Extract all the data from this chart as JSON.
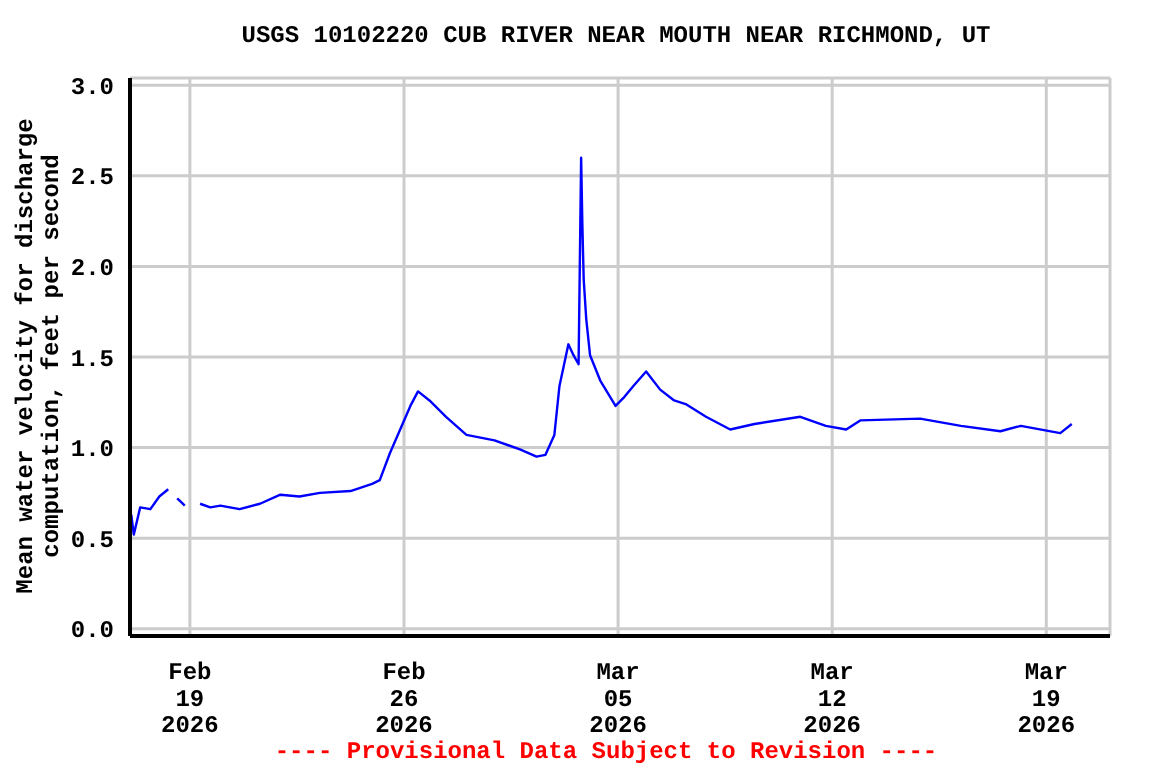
{
  "chart_data": {
    "type": "line",
    "title": "USGS 10102220 CUB RIVER NEAR MOUTH NEAR RICHMOND, UT",
    "ylabel": "Mean water velocity for discharge\ncomputation, feet per second",
    "annotations": [
      "---- Provisional Data Subject to Revision ----"
    ],
    "x": [
      "2026-02-17T02:00",
      "2026-02-17T04:00",
      "2026-02-17T09:00",
      "2026-02-17T17:00",
      "2026-02-18T00:00",
      "2026-02-18T07:00",
      "2026-02-18T12:00",
      "2026-02-19T08:00",
      "2026-02-19T16:00",
      "2026-02-20T00:00",
      "2026-02-20T15:00",
      "2026-02-21T07:00",
      "2026-02-21T23:00",
      "2026-02-22T14:00",
      "2026-02-23T06:00",
      "2026-02-24T06:00",
      "2026-02-24T23:00",
      "2026-02-25T05:00",
      "2026-02-25T13:00",
      "2026-02-26T05:00",
      "2026-02-26T11:00",
      "2026-02-26T20:00",
      "2026-02-27T09:00",
      "2026-02-28T01:00",
      "2026-02-28T23:00",
      "2026-03-01T19:00",
      "2026-03-02T08:00",
      "2026-03-02T15:00",
      "2026-03-02T22:00",
      "2026-03-03T02:00",
      "2026-03-03T09:00",
      "2026-03-03T13:00",
      "2026-03-03T17:00",
      "2026-03-03T19:00",
      "2026-03-03T20:00",
      "2026-03-03T21:00",
      "2026-03-03T23:00",
      "2026-03-04T02:00",
      "2026-03-04T10:00",
      "2026-03-04T22:00",
      "2026-03-05T05:00",
      "2026-03-05T12:00",
      "2026-03-05T22:00",
      "2026-03-06T09:00",
      "2026-03-06T20:00",
      "2026-03-07T05:00",
      "2026-03-07T21:00",
      "2026-03-08T16:00",
      "2026-03-09T11:00",
      "2026-03-10T23:00",
      "2026-03-11T19:00",
      "2026-03-12T11:00",
      "2026-03-12T22:00",
      "2026-03-14T21:00",
      "2026-03-16T05:00",
      "2026-03-17T12:00",
      "2026-03-18T04:00",
      "2026-03-19T11:00",
      "2026-03-19T20:00"
    ],
    "series": [
      {
        "color": "#0000ff",
        "values": [
          0.63,
          0.52,
          0.67,
          0.66,
          0.73,
          0.77,
          null,
          0.69,
          0.67,
          0.68,
          0.66,
          0.69,
          0.74,
          0.73,
          0.75,
          0.76,
          0.8,
          0.82,
          0.97,
          1.23,
          1.31,
          1.26,
          1.17,
          1.07,
          1.04,
          0.99,
          0.95,
          0.96,
          1.07,
          1.34,
          1.57,
          1.51,
          1.46,
          2.6,
          2.22,
          1.93,
          1.71,
          1.51,
          1.37,
          1.23,
          1.28,
          1.34,
          1.42,
          1.32,
          1.26,
          1.24,
          1.17,
          1.1,
          1.13,
          1.17,
          1.12,
          1.1,
          1.15,
          1.16,
          1.12,
          1.09,
          1.12,
          1.08,
          1.13
        ]
      },
      {
        "color": "#0000ff",
        "x": [
          "2026-02-18T14:00",
          "2026-02-18T17:00",
          "2026-02-18T20:00"
        ],
        "values": [
          0.72,
          0.7,
          0.68
        ]
      }
    ],
    "xlim": [
      "2026-02-17T01:00",
      "2026-03-21T02:00"
    ],
    "xticks": [
      {
        "value": "2026-02-19",
        "label": "Feb\n19\n2026"
      },
      {
        "value": "2026-02-26",
        "label": "Feb\n26\n2026"
      },
      {
        "value": "2026-03-05",
        "label": "Mar\n05\n2026"
      },
      {
        "value": "2026-03-12",
        "label": "Mar\n12\n2026"
      },
      {
        "value": "2026-03-19",
        "label": "Mar\n19\n2026"
      }
    ],
    "ylim": [
      -0.04,
      3.04
    ],
    "yticks": [
      {
        "value": 0,
        "label": "0.0"
      },
      {
        "value": 0.5,
        "label": "0.5"
      },
      {
        "value": 1,
        "label": "1.0"
      },
      {
        "value": 1.5,
        "label": "1.5"
      },
      {
        "value": 2,
        "label": "2.0"
      },
      {
        "value": 2.5,
        "label": "2.5"
      },
      {
        "value": 3,
        "label": "3.0"
      }
    ],
    "grid": true,
    "legend": false,
    "marker": "none",
    "line_style": "solid"
  }
}
